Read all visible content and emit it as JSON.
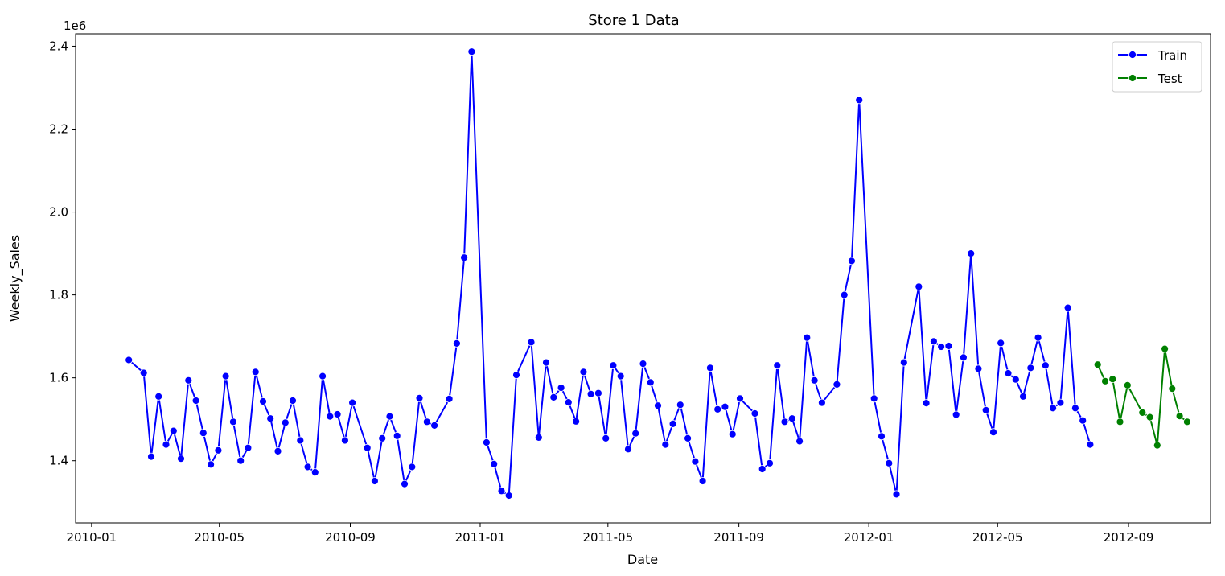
{
  "chart_data": {
    "type": "line",
    "title": "Store 1 Data",
    "xlabel": "Date",
    "ylabel": "Weekly_Sales",
    "y_offset_label": "1e6",
    "y_scale": 1000000,
    "xlim": [
      "2009-12-17",
      "2012-11-17"
    ],
    "ylim": [
      1250000,
      2430000
    ],
    "grid": false,
    "legend_position": "upper right",
    "x_ticks": [
      "2010-01",
      "2010-05",
      "2010-09",
      "2011-01",
      "2011-05",
      "2011-09",
      "2012-01",
      "2012-05",
      "2012-09"
    ],
    "y_ticks": [
      "1.4",
      "1.6",
      "1.8",
      "2.0",
      "2.2",
      "2.4"
    ],
    "series": [
      {
        "name": "Train",
        "color": "#0000ff",
        "points": [
          [
            "2010-02-05",
            1643000
          ],
          [
            "2010-02-19",
            1612000
          ],
          [
            "2010-02-26",
            1410000
          ],
          [
            "2010-03-05",
            1555000
          ],
          [
            "2010-03-12",
            1439000
          ],
          [
            "2010-03-19",
            1472000
          ],
          [
            "2010-03-26",
            1405000
          ],
          [
            "2010-04-02",
            1594000
          ],
          [
            "2010-04-09",
            1545000
          ],
          [
            "2010-04-16",
            1467000
          ],
          [
            "2010-04-23",
            1391000
          ],
          [
            "2010-04-30",
            1425000
          ],
          [
            "2010-05-07",
            1604000
          ],
          [
            "2010-05-14",
            1494000
          ],
          [
            "2010-05-21",
            1400000
          ],
          [
            "2010-05-28",
            1431000
          ],
          [
            "2010-06-04",
            1614000
          ],
          [
            "2010-06-11",
            1543000
          ],
          [
            "2010-06-18",
            1502000
          ],
          [
            "2010-06-25",
            1423000
          ],
          [
            "2010-07-02",
            1492000
          ],
          [
            "2010-07-09",
            1545000
          ],
          [
            "2010-07-16",
            1449000
          ],
          [
            "2010-07-23",
            1385000
          ],
          [
            "2010-07-30",
            1372000
          ],
          [
            "2010-08-06",
            1604000
          ],
          [
            "2010-08-13",
            1507000
          ],
          [
            "2010-08-20",
            1512000
          ],
          [
            "2010-08-27",
            1449000
          ],
          [
            "2010-09-03",
            1540000
          ],
          [
            "2010-09-17",
            1431000
          ],
          [
            "2010-09-24",
            1351000
          ],
          [
            "2010-10-01",
            1454000
          ],
          [
            "2010-10-08",
            1507000
          ],
          [
            "2010-10-15",
            1460000
          ],
          [
            "2010-10-22",
            1344000
          ],
          [
            "2010-10-29",
            1385000
          ],
          [
            "2010-11-05",
            1551000
          ],
          [
            "2010-11-12",
            1494000
          ],
          [
            "2010-11-19",
            1485000
          ],
          [
            "2010-12-03",
            1549000
          ],
          [
            "2010-12-10",
            1683000
          ],
          [
            "2010-12-17",
            1890000
          ],
          [
            "2010-12-24",
            2387000
          ],
          [
            "2011-01-07",
            1444000
          ],
          [
            "2011-01-14",
            1392000
          ],
          [
            "2011-01-21",
            1327000
          ],
          [
            "2011-01-28",
            1316000
          ],
          [
            "2011-02-04",
            1607000
          ],
          [
            "2011-02-18",
            1686000
          ],
          [
            "2011-02-25",
            1456000
          ],
          [
            "2011-03-04",
            1637000
          ],
          [
            "2011-03-11",
            1553000
          ],
          [
            "2011-03-18",
            1576000
          ],
          [
            "2011-03-25",
            1541000
          ],
          [
            "2011-04-01",
            1495000
          ],
          [
            "2011-04-08",
            1614000
          ],
          [
            "2011-04-15",
            1561000
          ],
          [
            "2011-04-22",
            1563000
          ],
          [
            "2011-04-29",
            1454000
          ],
          [
            "2011-05-06",
            1630000
          ],
          [
            "2011-05-13",
            1604000
          ],
          [
            "2011-05-20",
            1428000
          ],
          [
            "2011-05-27",
            1466000
          ],
          [
            "2011-06-03",
            1634000
          ],
          [
            "2011-06-10",
            1589000
          ],
          [
            "2011-06-17",
            1533000
          ],
          [
            "2011-06-24",
            1439000
          ],
          [
            "2011-07-01",
            1489000
          ],
          [
            "2011-07-08",
            1535000
          ],
          [
            "2011-07-15",
            1454000
          ],
          [
            "2011-07-22",
            1398000
          ],
          [
            "2011-07-29",
            1351000
          ],
          [
            "2011-08-05",
            1624000
          ],
          [
            "2011-08-12",
            1524000
          ],
          [
            "2011-08-19",
            1530000
          ],
          [
            "2011-08-26",
            1464000
          ],
          [
            "2011-09-02",
            1550000
          ],
          [
            "2011-09-16",
            1514000
          ],
          [
            "2011-09-23",
            1380000
          ],
          [
            "2011-09-30",
            1394000
          ],
          [
            "2011-10-07",
            1630000
          ],
          [
            "2011-10-14",
            1494000
          ],
          [
            "2011-10-21",
            1502000
          ],
          [
            "2011-10-28",
            1447000
          ],
          [
            "2011-11-04",
            1697000
          ],
          [
            "2011-11-11",
            1594000
          ],
          [
            "2011-11-18",
            1540000
          ],
          [
            "2011-12-02",
            1584000
          ],
          [
            "2011-12-09",
            1800000
          ],
          [
            "2011-12-16",
            1882000
          ],
          [
            "2011-12-23",
            2270000
          ],
          [
            "2012-01-06",
            1550000
          ],
          [
            "2012-01-13",
            1459000
          ],
          [
            "2012-01-20",
            1394000
          ],
          [
            "2012-01-27",
            1319000
          ],
          [
            "2012-02-03",
            1637000
          ],
          [
            "2012-02-17",
            1820000
          ],
          [
            "2012-02-24",
            1539000
          ],
          [
            "2012-03-02",
            1688000
          ],
          [
            "2012-03-09",
            1675000
          ],
          [
            "2012-03-16",
            1677000
          ],
          [
            "2012-03-23",
            1511000
          ],
          [
            "2012-03-30",
            1649000
          ],
          [
            "2012-04-06",
            1900000
          ],
          [
            "2012-04-13",
            1622000
          ],
          [
            "2012-04-20",
            1522000
          ],
          [
            "2012-04-27",
            1469000
          ],
          [
            "2012-05-04",
            1684000
          ],
          [
            "2012-05-11",
            1611000
          ],
          [
            "2012-05-18",
            1596000
          ],
          [
            "2012-05-25",
            1555000
          ],
          [
            "2012-06-01",
            1624000
          ],
          [
            "2012-06-08",
            1697000
          ],
          [
            "2012-06-15",
            1630000
          ],
          [
            "2012-06-22",
            1527000
          ],
          [
            "2012-06-29",
            1540000
          ],
          [
            "2012-07-06",
            1769000
          ],
          [
            "2012-07-13",
            1527000
          ],
          [
            "2012-07-20",
            1497000
          ],
          [
            "2012-07-27",
            1439000
          ]
        ]
      },
      {
        "name": "Test",
        "color": "#008000",
        "points": [
          [
            "2012-08-03",
            1632000
          ],
          [
            "2012-08-10",
            1592000
          ],
          [
            "2012-08-17",
            1597000
          ],
          [
            "2012-08-24",
            1494000
          ],
          [
            "2012-08-31",
            1582000
          ],
          [
            "2012-09-14",
            1516000
          ],
          [
            "2012-09-21",
            1505000
          ],
          [
            "2012-09-28",
            1437000
          ],
          [
            "2012-10-05",
            1670000
          ],
          [
            "2012-10-12",
            1574000
          ],
          [
            "2012-10-19",
            1508000
          ],
          [
            "2012-10-26",
            1494000
          ]
        ]
      }
    ]
  }
}
